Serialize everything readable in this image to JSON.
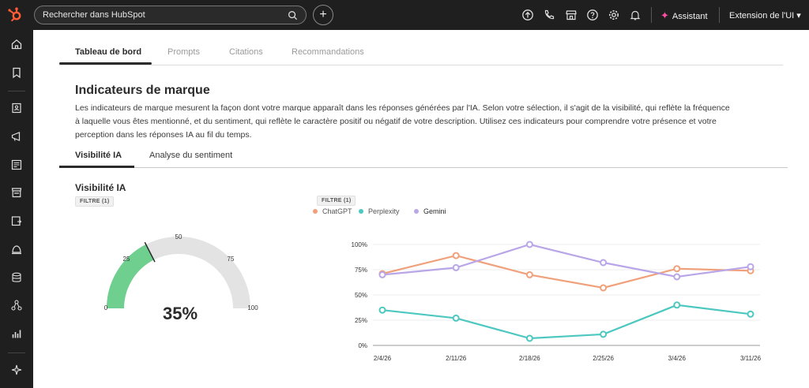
{
  "topbar": {
    "search_placeholder": "Rechercher dans HubSpot",
    "plus_label": "+",
    "assistant_label": "Assistant",
    "extension_label": "Extension de l'UI ▾",
    "icons": [
      "upgrade-icon",
      "phone-icon",
      "marketplace-icon",
      "help-icon",
      "settings-icon",
      "notifications-icon"
    ]
  },
  "sidebar": {
    "icons": [
      "home-icon",
      "bookmark-icon",
      "contacts-icon",
      "marketing-icon",
      "content-icon",
      "commerce-icon",
      "service-icon",
      "automation-icon",
      "data-icon",
      "integrations-icon",
      "reporting-icon",
      "breeze-icon"
    ]
  },
  "tabs": [
    {
      "label": "Tableau de bord",
      "active": true
    },
    {
      "label": "Prompts",
      "active": false
    },
    {
      "label": "Citations",
      "active": false
    },
    {
      "label": "Recommandations",
      "active": false
    }
  ],
  "section": {
    "title": "Indicateurs de marque",
    "description": "Les indicateurs de marque mesurent la façon dont votre marque apparaît dans les réponses générées par l'IA. Selon votre sélection, il s'agit de la visibilité, qui reflète la fréquence à laquelle vous êtes mentionné, et du sentiment, qui reflète le caractère positif ou négatif de votre description. Utilisez ces indicateurs pour comprendre votre présence et votre perception dans les réponses IA au fil du temps."
  },
  "subtabs": [
    {
      "label": "Visibilité IA",
      "active": true
    },
    {
      "label": "Analyse du sentiment",
      "active": false
    }
  ],
  "gauge": {
    "title": "Visibilité IA",
    "filter": "FILTRE (1)",
    "value_label": "35%",
    "value": 35,
    "ticks": [
      "0",
      "25",
      "50",
      "75",
      "100"
    ],
    "fill_color": "#6fcf8e",
    "track_color": "#e3e3e3"
  },
  "chart_filter": "FILTRE (1)",
  "chart_data": {
    "type": "line",
    "x": [
      "2/4/26",
      "2/11/26",
      "2/18/26",
      "2/25/26",
      "3/4/26",
      "3/11/26"
    ],
    "yticks": [
      "100%",
      "75%",
      "50%",
      "25%",
      "0%"
    ],
    "ylim": [
      0,
      100
    ],
    "legend_position": "top-left",
    "grid": true,
    "series": [
      {
        "name": "ChatGPT",
        "color": "#f0a07a",
        "values": [
          71,
          89,
          70,
          57,
          76,
          74
        ]
      },
      {
        "name": "Perplexity",
        "color": "#4dc8c0",
        "values": [
          35,
          27,
          7,
          11,
          40,
          31
        ]
      },
      {
        "name": "Gemini",
        "color": "#b8a6e8",
        "values": [
          70,
          77,
          100,
          82,
          68,
          78
        ]
      }
    ]
  }
}
